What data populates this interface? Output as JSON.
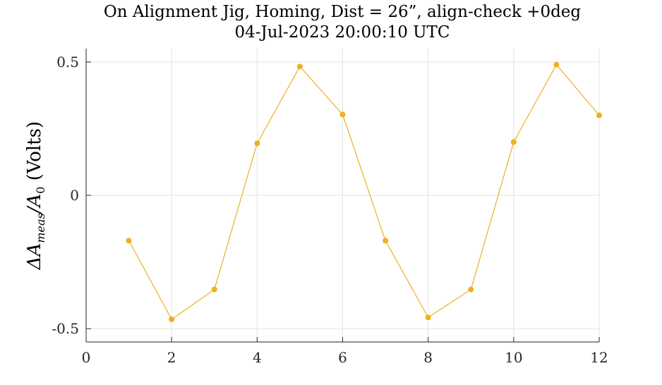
{
  "chart_data": {
    "type": "line",
    "title": [
      "On Alignment Jig, Homing, Dist = 26”, align-check +0deg",
      "04-Jul-2023 20:00:10 UTC"
    ],
    "ylabel": {
      "delta": "ΔA",
      "sub1": "meas",
      "slash": "/A",
      "sub2": "0",
      "unit": " (Volts)"
    },
    "xlabel": "",
    "xlim": [
      0,
      12
    ],
    "ylim": [
      -0.55,
      0.55
    ],
    "xticks": [
      0,
      2,
      4,
      6,
      8,
      10,
      12
    ],
    "yticks": [
      -0.5,
      0,
      0.5
    ],
    "ytick_labels": [
      "-0.5",
      "0",
      "0.5"
    ],
    "grid": true,
    "color": "#EDB120",
    "x": [
      1,
      2,
      3,
      4,
      5,
      6,
      7,
      8,
      9,
      10,
      11,
      12
    ],
    "y": [
      -0.17,
      -0.465,
      -0.353,
      0.195,
      0.483,
      0.303,
      -0.17,
      -0.458,
      -0.353,
      0.2,
      0.49,
      0.3
    ]
  }
}
